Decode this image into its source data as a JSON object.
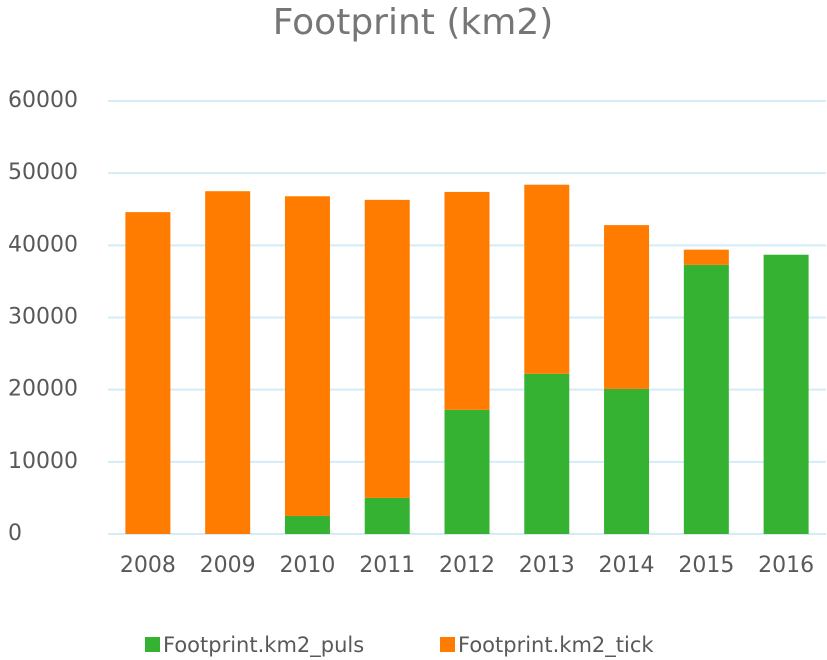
{
  "chart_data": {
    "type": "stacked_bar",
    "title": "Footprint (km2)",
    "categories": [
      "2008",
      "2009",
      "2010",
      "2011",
      "2012",
      "2013",
      "2014",
      "2015",
      "2016"
    ],
    "series": [
      {
        "name": "Footprint.km2_puls",
        "color": "#36b232",
        "values": [
          0,
          0,
          2500,
          5000,
          17200,
          22200,
          20100,
          37300,
          38700
        ]
      },
      {
        "name": "Footprint.km2_tick",
        "color": "#ff7c00",
        "values": [
          44600,
          47500,
          44300,
          41300,
          30200,
          26200,
          22700,
          2100,
          0
        ]
      }
    ],
    "ylim": [
      0,
      60000
    ],
    "yticks": [
      0,
      10000,
      20000,
      30000,
      40000,
      50000,
      60000
    ],
    "grid": true,
    "legend": "bottom"
  }
}
